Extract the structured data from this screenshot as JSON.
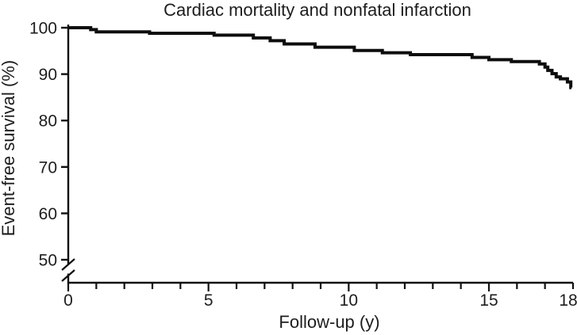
{
  "colors": {
    "background": "#ffffff",
    "axis": "#111111",
    "curve": "#0d0d0d",
    "text": "#1d1d1d"
  },
  "chart_data": {
    "type": "line",
    "subtype": "kaplan-meier-step-curve",
    "title": "Cardiac mortality and nonfatal infarction",
    "xlabel": "Follow-up (y)",
    "ylabel": "Event-free survival (%)",
    "grid": false,
    "legend": false,
    "x_axis": {
      "range": [
        0,
        18
      ],
      "major_ticks": [
        0,
        5,
        10,
        15
      ],
      "minor_tick_interval": 1,
      "labeled_ticks": [
        0,
        5,
        10,
        15,
        18
      ]
    },
    "y_axis": {
      "range_shown": [
        50,
        100
      ],
      "ticks": [
        100,
        90,
        80,
        70,
        60,
        50
      ],
      "axis_break_below": 50
    },
    "series": [
      {
        "name": "Event-free survival",
        "points": [
          [
            0,
            100
          ],
          [
            0.8,
            99.6
          ],
          [
            1.0,
            99.1
          ],
          [
            2.9,
            98.8
          ],
          [
            5.2,
            98.4
          ],
          [
            6.6,
            97.8
          ],
          [
            7.2,
            97.2
          ],
          [
            7.7,
            96.5
          ],
          [
            8.8,
            95.8
          ],
          [
            10.2,
            95.1
          ],
          [
            11.2,
            94.6
          ],
          [
            12.2,
            94.2
          ],
          [
            14.4,
            93.6
          ],
          [
            15.0,
            93.1
          ],
          [
            15.8,
            92.7
          ],
          [
            16.8,
            92.2
          ],
          [
            17.0,
            91.5
          ],
          [
            17.1,
            90.8
          ],
          [
            17.25,
            90.1
          ],
          [
            17.4,
            89.4
          ],
          [
            17.55,
            89.0
          ],
          [
            17.8,
            88.3
          ],
          [
            17.92,
            87.1
          ]
        ]
      }
    ]
  }
}
